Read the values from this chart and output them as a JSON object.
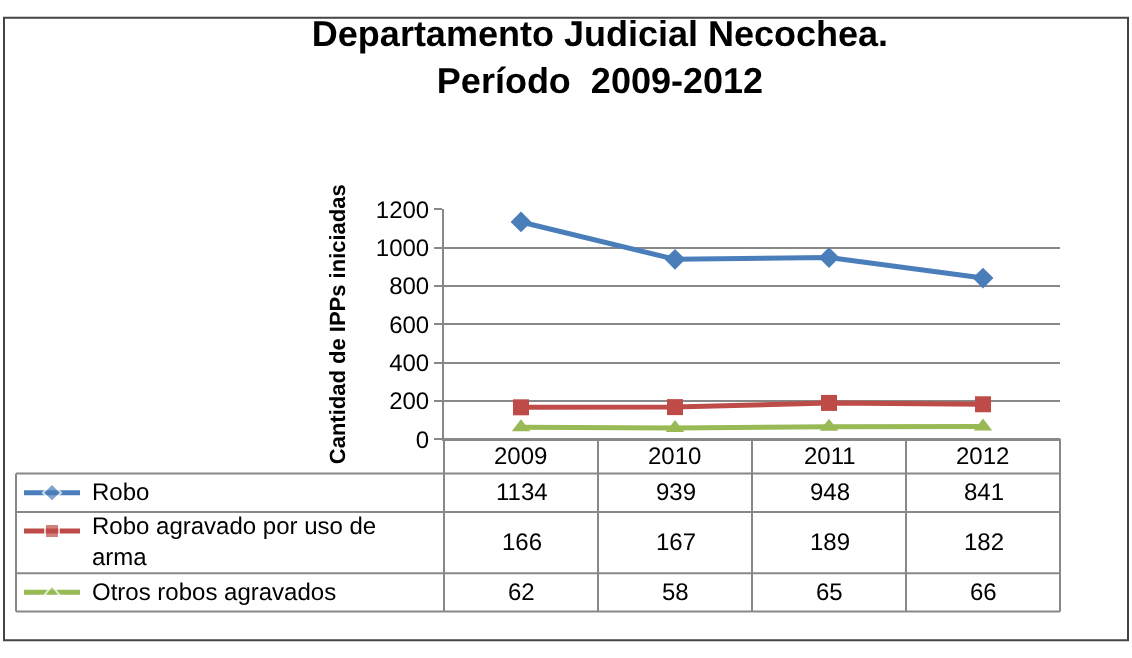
{
  "chart_data": {
    "type": "line",
    "title": "Departamento Judicial Necochea.\nPeríodo  2009-2012",
    "ylabel": "Cantidad de IPPs iniciadas",
    "categories": [
      "2009",
      "2010",
      "2011",
      "2012"
    ],
    "series": [
      {
        "name": "Robo",
        "color": "#4a7ebb",
        "marker": "diamond",
        "values": [
          1134,
          939,
          948,
          841
        ]
      },
      {
        "name": "Robo agravado por uso de arma",
        "color": "#be4b48",
        "marker": "square",
        "values": [
          166,
          167,
          189,
          182
        ]
      },
      {
        "name": "Otros robos agravados",
        "color": "#98b954",
        "marker": "triangle",
        "values": [
          62,
          58,
          65,
          66
        ]
      }
    ],
    "ylim": [
      0,
      1200
    ],
    "yticks": [
      0,
      200,
      400,
      600,
      800,
      1000,
      1200
    ],
    "grid": "y",
    "legend": "bottom left",
    "data_labels": true,
    "line_style": "solid"
  }
}
